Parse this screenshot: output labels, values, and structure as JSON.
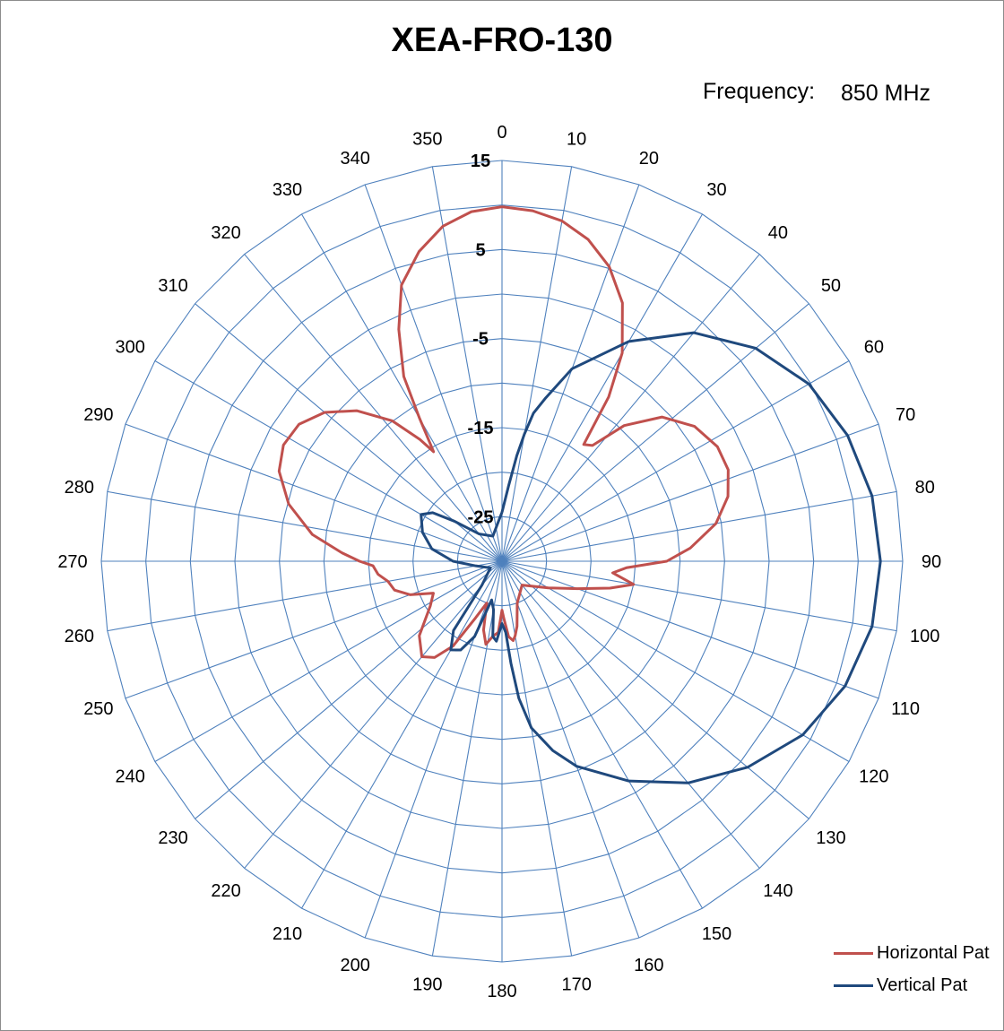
{
  "chart_data": {
    "type": "polar-line",
    "title": "XEA-FRO-130",
    "frequency": {
      "label": "Frequency:",
      "value": "850 MHz"
    },
    "angle_ticks": [
      "0",
      "10",
      "20",
      "30",
      "40",
      "50",
      "60",
      "70",
      "80",
      "90",
      "100",
      "110",
      "120",
      "130",
      "140",
      "150",
      "160",
      "170",
      "180",
      "190",
      "200",
      "210",
      "220",
      "230",
      "240",
      "250",
      "260",
      "270",
      "280",
      "290",
      "300",
      "310",
      "320",
      "330",
      "340",
      "350"
    ],
    "radial_ticks": [
      "15",
      "5",
      "-5",
      "-15",
      "-25"
    ],
    "radial_range": [
      -30,
      15
    ],
    "grid": true,
    "legend_position": "bottom-right",
    "series": [
      {
        "name": "Horizontal Pat",
        "color": "#c0504d",
        "points": [
          [
            0,
            9.8
          ],
          [
            5,
            9.5
          ],
          [
            10,
            8.8
          ],
          [
            15,
            7.4
          ],
          [
            20,
            5.2
          ],
          [
            25,
            2.0
          ],
          [
            30,
            -3.0
          ],
          [
            33,
            -8.0
          ],
          [
            35,
            -14.0
          ],
          [
            38,
            -13.5
          ],
          [
            42,
            -9.5
          ],
          [
            48,
            -5.8
          ],
          [
            55,
            -3.6
          ],
          [
            62,
            -2.6
          ],
          [
            68,
            -2.6
          ],
          [
            74,
            -3.6
          ],
          [
            80,
            -5.6
          ],
          [
            86,
            -8.8
          ],
          [
            90,
            -11.5
          ],
          [
            93,
            -16.0
          ],
          [
            96,
            -17.5
          ],
          [
            100,
            -15.0
          ],
          [
            104,
            -17.5
          ],
          [
            110,
            -21.0
          ],
          [
            120,
            -24.0
          ],
          [
            140,
            -26.5
          ],
          [
            160,
            -25.0
          ],
          [
            167,
            -22.5
          ],
          [
            170,
            -21.5
          ],
          [
            172,
            -21.0
          ],
          [
            175,
            -21.5
          ],
          [
            178,
            -23.5
          ],
          [
            180,
            -24.5
          ],
          [
            183,
            -22.0
          ],
          [
            187,
            -21.5
          ],
          [
            191,
            -20.5
          ],
          [
            195,
            -22.0
          ],
          [
            200,
            -25.0
          ],
          [
            205,
            -23.0
          ],
          [
            210,
            -19.0
          ],
          [
            215,
            -16.8
          ],
          [
            220,
            -16.0
          ],
          [
            228,
            -17.5
          ],
          [
            238,
            -20.5
          ],
          [
            245,
            -21.5
          ],
          [
            250,
            -19.0
          ],
          [
            255,
            -17.5
          ],
          [
            260,
            -17.0
          ],
          [
            264,
            -16.0
          ],
          [
            268,
            -15.5
          ],
          [
            270,
            -14.0
          ],
          [
            273,
            -12.0
          ],
          [
            278,
            -8.5
          ],
          [
            285,
            -5.2
          ],
          [
            292,
            -3.0
          ],
          [
            298,
            -2.2
          ],
          [
            304,
            -2.5
          ],
          [
            310,
            -4.0
          ],
          [
            316,
            -6.5
          ],
          [
            322,
            -10.0
          ],
          [
            326,
            -13.5
          ],
          [
            328,
            -15.5
          ],
          [
            330,
            -11.5
          ],
          [
            332,
            -6.5
          ],
          [
            336,
            -1.5
          ],
          [
            340,
            3.0
          ],
          [
            345,
            6.0
          ],
          [
            350,
            8.2
          ],
          [
            355,
            9.4
          ],
          [
            360,
            9.8
          ]
        ]
      },
      {
        "name": "Vertical Pat",
        "color": "#1f497d",
        "points": [
          [
            0,
            -24.5
          ],
          [
            5,
            -21.5
          ],
          [
            8,
            -18.0
          ],
          [
            10,
            -15.5
          ],
          [
            12,
            -13.0
          ],
          [
            15,
            -11.0
          ],
          [
            20,
            -7.0
          ],
          [
            30,
            -1.5
          ],
          [
            40,
            3.5
          ],
          [
            50,
            7.2
          ],
          [
            60,
            9.8
          ],
          [
            70,
            11.3
          ],
          [
            80,
            12.2
          ],
          [
            90,
            12.5
          ],
          [
            100,
            12.2
          ],
          [
            110,
            11.0
          ],
          [
            120,
            9.0
          ],
          [
            130,
            6.0
          ],
          [
            140,
            2.5
          ],
          [
            150,
            -1.5
          ],
          [
            160,
            -5.5
          ],
          [
            165,
            -8.0
          ],
          [
            170,
            -11.0
          ],
          [
            173,
            -14.5
          ],
          [
            175,
            -18.5
          ],
          [
            177,
            -22.0
          ],
          [
            180,
            -23.0
          ],
          [
            184,
            -21.0
          ],
          [
            187,
            -21.5
          ],
          [
            190,
            -24.5
          ],
          [
            195,
            -25.5
          ],
          [
            200,
            -21.0
          ],
          [
            205,
            -19.0
          ],
          [
            210,
            -18.5
          ],
          [
            215,
            -20.5
          ],
          [
            220,
            -26.5
          ],
          [
            240,
            -28.5
          ],
          [
            260,
            -27.0
          ],
          [
            270,
            -24.5
          ],
          [
            280,
            -22.0
          ],
          [
            290,
            -20.5
          ],
          [
            300,
            -19.5
          ],
          [
            305,
            -20.5
          ],
          [
            310,
            -23.0
          ],
          [
            320,
            -26.0
          ],
          [
            340,
            -27.0
          ],
          [
            355,
            -25.5
          ],
          [
            360,
            -24.5
          ]
        ]
      }
    ]
  }
}
